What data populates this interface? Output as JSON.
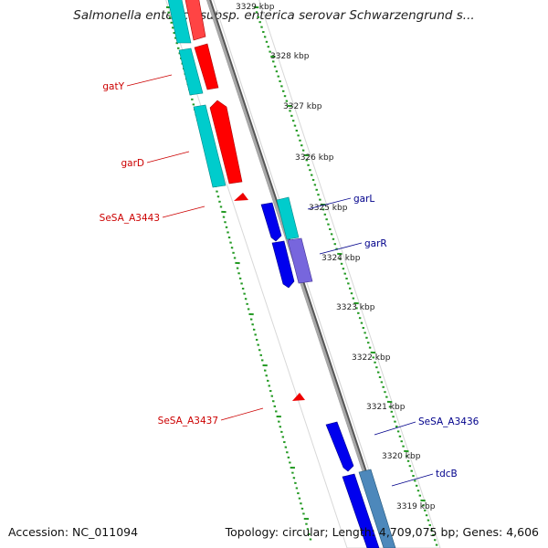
{
  "title": "Salmonella enterica subsp. enterica serovar Schwarzengrund s...",
  "footer": {
    "accession": "Accession: NC_011094",
    "stats": "Topology: circular; Length: 4,709,075 bp; Genes: 4,606"
  },
  "colors": {
    "reverse_label": "#cc0000",
    "forward_label": "#00008b",
    "red_gene": "#ff0000",
    "cyan_gene": "#00cccc",
    "blue_gene": "#0000ee",
    "purple_gene": "#7766dd",
    "steel_gene": "#4d88bb",
    "backbone": "#888888",
    "tick": "#229922"
  },
  "tick_labels": [
    "3329 kbp",
    "3328 kbp",
    "3327 kbp",
    "3326 kbp",
    "3325 kbp",
    "3324 kbp",
    "3323 kbp",
    "3322 kbp",
    "3321 kbp",
    "3320 kbp",
    "3319 kbp"
  ],
  "left_labels": [
    "gatY",
    "garD",
    "SeSA_A3443",
    "SeSA_A3437"
  ],
  "right_labels": [
    "garL",
    "garR",
    "SeSA_A3436",
    "tdcB"
  ]
}
